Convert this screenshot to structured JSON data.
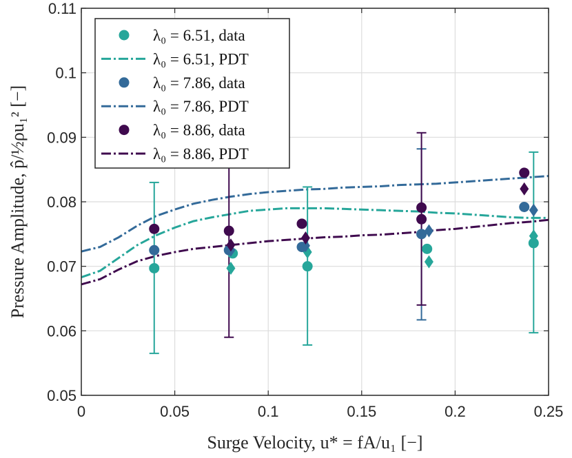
{
  "chart_data": {
    "type": "scatter",
    "xlabel": "Surge Velocity, u* = fA/u₁ [−]",
    "ylabel": "Pressure Amplitude, p̂/½ρu₁² [−]",
    "xlim": [
      0,
      0.25
    ],
    "ylim": [
      0.05,
      0.11
    ],
    "xticks": [
      0,
      0.05,
      0.1,
      0.15,
      0.2,
      0.25
    ],
    "xtick_labels": [
      "0",
      "0.05",
      "0.1",
      "0.15",
      "0.2",
      "0.25"
    ],
    "yticks": [
      0.05,
      0.06,
      0.07,
      0.08,
      0.09,
      0.1,
      0.11
    ],
    "ytick_labels": [
      "0.05",
      "0.06",
      "0.07",
      "0.08",
      "0.09",
      "0.1",
      "0.11"
    ],
    "grid": true,
    "legend_position": "top-left",
    "legend": [
      {
        "label": "λ₀ = 6.51, data",
        "kind": "marker",
        "series": 0
      },
      {
        "label": "λ₀ = 6.51, PDT",
        "kind": "line",
        "series": 0
      },
      {
        "label": "λ₀ = 7.86, data",
        "kind": "marker",
        "series": 1
      },
      {
        "label": "λ₀ = 7.86, PDT",
        "kind": "line",
        "series": 1
      },
      {
        "label": "λ₀ = 8.86, data",
        "kind": "marker",
        "series": 2
      },
      {
        "label": "λ₀ = 8.86, PDT",
        "kind": "line",
        "series": 2
      }
    ],
    "series": [
      {
        "name": "λ₀ = 6.51",
        "color": "#26a69a",
        "circles": [
          [
            0.039,
            0.0697
          ],
          [
            0.081,
            0.072
          ],
          [
            0.121,
            0.07
          ],
          [
            0.185,
            0.0727
          ],
          [
            0.242,
            0.0736
          ]
        ],
        "diamonds": [
          [
            0.08,
            0.0697
          ],
          [
            0.121,
            0.0722
          ],
          [
            0.186,
            0.0707
          ],
          [
            0.242,
            0.0747
          ]
        ],
        "errorbars": [
          [
            0.039,
            0.0565,
            0.083
          ],
          [
            0.121,
            0.0578,
            0.0823
          ],
          [
            0.242,
            0.0597,
            0.0877
          ]
        ],
        "pdt": [
          [
            0,
            0.0683
          ],
          [
            0.01,
            0.0693
          ],
          [
            0.02,
            0.0713
          ],
          [
            0.03,
            0.0733
          ],
          [
            0.04,
            0.0748
          ],
          [
            0.05,
            0.076
          ],
          [
            0.06,
            0.077
          ],
          [
            0.07,
            0.0776
          ],
          [
            0.08,
            0.0781
          ],
          [
            0.09,
            0.0786
          ],
          [
            0.1,
            0.0788
          ],
          [
            0.11,
            0.079
          ],
          [
            0.12,
            0.079
          ],
          [
            0.13,
            0.079
          ],
          [
            0.14,
            0.0789
          ],
          [
            0.15,
            0.0788
          ],
          [
            0.16,
            0.0787
          ],
          [
            0.17,
            0.0786
          ],
          [
            0.18,
            0.0785
          ],
          [
            0.19,
            0.0783
          ],
          [
            0.2,
            0.0782
          ],
          [
            0.21,
            0.078
          ],
          [
            0.22,
            0.0778
          ],
          [
            0.23,
            0.0776
          ],
          [
            0.24,
            0.0775
          ],
          [
            0.25,
            0.0775
          ]
        ]
      },
      {
        "name": "λ₀ = 7.86",
        "color": "#336a99",
        "circles": [
          [
            0.039,
            0.0725
          ],
          [
            0.079,
            0.0725
          ],
          [
            0.118,
            0.073
          ],
          [
            0.182,
            0.075
          ],
          [
            0.237,
            0.0792
          ]
        ],
        "diamonds": [
          [
            0.08,
            0.0725
          ],
          [
            0.12,
            0.0732
          ],
          [
            0.186,
            0.0755
          ],
          [
            0.242,
            0.0787
          ]
        ],
        "errorbars": [
          [
            0.182,
            0.0617,
            0.0882
          ]
        ],
        "pdt": [
          [
            0,
            0.0723
          ],
          [
            0.01,
            0.073
          ],
          [
            0.02,
            0.0745
          ],
          [
            0.03,
            0.0763
          ],
          [
            0.04,
            0.0778
          ],
          [
            0.05,
            0.0788
          ],
          [
            0.06,
            0.0797
          ],
          [
            0.07,
            0.0803
          ],
          [
            0.08,
            0.0808
          ],
          [
            0.09,
            0.0812
          ],
          [
            0.1,
            0.0815
          ],
          [
            0.11,
            0.0817
          ],
          [
            0.12,
            0.0819
          ],
          [
            0.13,
            0.082
          ],
          [
            0.14,
            0.0822
          ],
          [
            0.15,
            0.0823
          ],
          [
            0.16,
            0.0824
          ],
          [
            0.17,
            0.0826
          ],
          [
            0.18,
            0.0827
          ],
          [
            0.19,
            0.0828
          ],
          [
            0.2,
            0.083
          ],
          [
            0.21,
            0.0832
          ],
          [
            0.22,
            0.0834
          ],
          [
            0.23,
            0.0836
          ],
          [
            0.24,
            0.0838
          ],
          [
            0.25,
            0.084
          ]
        ]
      },
      {
        "name": "λ₀ = 8.86",
        "color": "#3f0a4e",
        "circles": [
          [
            0.039,
            0.0758
          ],
          [
            0.079,
            0.0755
          ],
          [
            0.118,
            0.0766
          ],
          [
            0.182,
            0.0791
          ],
          [
            0.182,
            0.0773
          ],
          [
            0.237,
            0.0845
          ]
        ],
        "diamonds": [
          [
            0.08,
            0.0733
          ],
          [
            0.12,
            0.0744
          ],
          [
            0.237,
            0.082
          ]
        ],
        "errorbars": [
          [
            0.079,
            0.059,
            0.09
          ],
          [
            0.182,
            0.064,
            0.0907
          ]
        ],
        "pdt": [
          [
            0,
            0.0672
          ],
          [
            0.01,
            0.068
          ],
          [
            0.02,
            0.0695
          ],
          [
            0.03,
            0.0708
          ],
          [
            0.04,
            0.0716
          ],
          [
            0.05,
            0.0722
          ],
          [
            0.06,
            0.0727
          ],
          [
            0.07,
            0.073
          ],
          [
            0.08,
            0.0733
          ],
          [
            0.09,
            0.0736
          ],
          [
            0.1,
            0.0739
          ],
          [
            0.11,
            0.0741
          ],
          [
            0.12,
            0.0743
          ],
          [
            0.13,
            0.0745
          ],
          [
            0.14,
            0.0746
          ],
          [
            0.15,
            0.0748
          ],
          [
            0.16,
            0.0749
          ],
          [
            0.17,
            0.0751
          ],
          [
            0.18,
            0.0753
          ],
          [
            0.19,
            0.0756
          ],
          [
            0.2,
            0.0758
          ],
          [
            0.21,
            0.0761
          ],
          [
            0.22,
            0.0764
          ],
          [
            0.23,
            0.0767
          ],
          [
            0.24,
            0.0769
          ],
          [
            0.25,
            0.0772
          ]
        ]
      }
    ]
  }
}
